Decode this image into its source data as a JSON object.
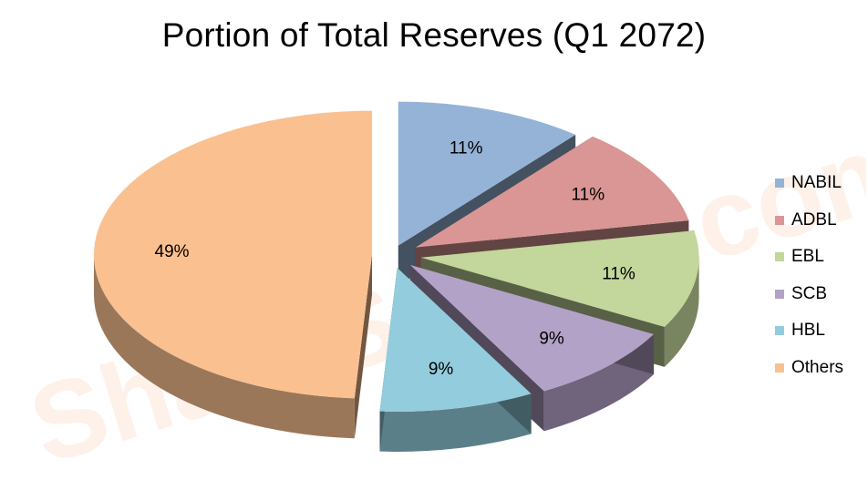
{
  "watermark_text": "ShareSansar.com",
  "chart_data": {
    "type": "pie",
    "title": "Portion of Total Reserves (Q1 2072)",
    "categories": [
      "NABIL",
      "ADBL",
      "EBL",
      "SCB",
      "HBL",
      "Others"
    ],
    "values": [
      11,
      11,
      11,
      9,
      9,
      49
    ],
    "data_labels": [
      "11%",
      "11%",
      "11%",
      "9%",
      "9%",
      "49%"
    ],
    "legend": "right",
    "style": "3d-exploded",
    "colors": [
      "#95b3d7",
      "#d99694",
      "#c3d69b",
      "#b3a2c7",
      "#93cddd",
      "#fac090"
    ]
  }
}
